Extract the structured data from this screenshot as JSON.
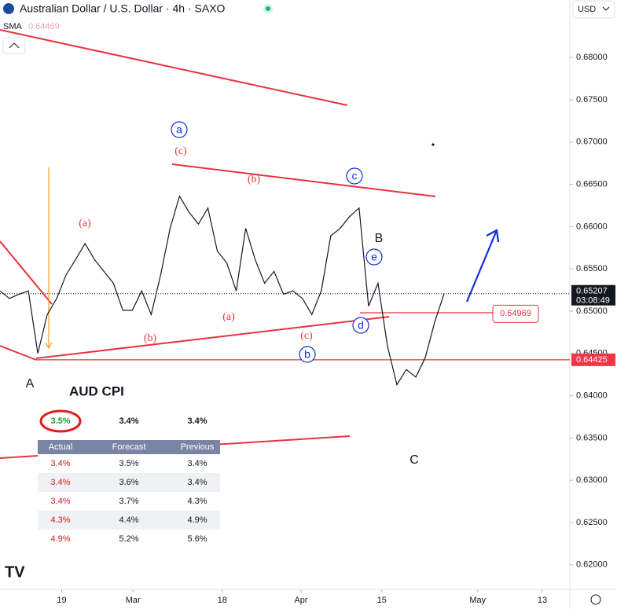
{
  "chart_data": {
    "type": "line",
    "title": "Australian Dollar / U.S. Dollar · 4h · SAXO",
    "currency": "USD",
    "sma_label": "SMA",
    "sma_value": 0.64469,
    "series": [
      {
        "name": "AUDUSD",
        "color": "#131722",
        "values": [
          0.6524,
          0.6515,
          0.652,
          0.6524,
          0.645,
          0.6496,
          0.6515,
          0.6543,
          0.6561,
          0.658,
          0.6561,
          0.6547,
          0.6533,
          0.6501,
          0.6501,
          0.6524,
          0.6496,
          0.6543,
          0.6598,
          0.6636,
          0.6617,
          0.6603,
          0.6622,
          0.6571,
          0.6557,
          0.6524,
          0.6598,
          0.6561,
          0.6533,
          0.6547,
          0.652,
          0.6524,
          0.6515,
          0.6496,
          0.6524,
          0.6589,
          0.6598,
          0.6612,
          0.6622,
          0.6506,
          0.6533,
          0.6459,
          0.6413,
          0.6431,
          0.6422,
          0.6445,
          0.6487,
          0.6521
        ]
      }
    ],
    "xlim": [
      0,
      60
    ],
    "xticks": [
      {
        "value": 6.5,
        "label": "19"
      },
      {
        "value": 14,
        "label": "Mar"
      },
      {
        "value": 23.4,
        "label": "18"
      },
      {
        "value": 31.7,
        "label": "Apr"
      },
      {
        "value": 40.2,
        "label": "15"
      },
      {
        "value": 50.3,
        "label": "May"
      },
      {
        "value": 57.1,
        "label": "13"
      }
    ],
    "ylim": [
      0.6171,
      0.6868
    ],
    "yticks": [
      {
        "value": 0.68,
        "label": "0.68000"
      },
      {
        "value": 0.675,
        "label": "0.67500"
      },
      {
        "value": 0.67,
        "label": "0.67000"
      },
      {
        "value": 0.665,
        "label": "0.66500"
      },
      {
        "value": 0.66,
        "label": "0.66000"
      },
      {
        "value": 0.655,
        "label": "0.65500"
      },
      {
        "value": 0.65,
        "label": "0.65000"
      },
      {
        "value": 0.645,
        "label": "0.64500"
      },
      {
        "value": 0.64,
        "label": "0.64000"
      },
      {
        "value": 0.635,
        "label": "0.63500"
      },
      {
        "value": 0.63,
        "label": "0.63000"
      },
      {
        "value": 0.625,
        "label": "0.62500"
      },
      {
        "value": 0.62,
        "label": "0.62000"
      }
    ],
    "last_price": 0.65207,
    "countdown": "03:08:49",
    "support_level": 0.64425,
    "marked_level": 0.64969,
    "annotations": [
      "(c)",
      "a",
      "(b)",
      "c",
      "(a)",
      "B",
      "e",
      "(a)",
      "(b)",
      "(c)",
      "d",
      "b",
      "A",
      "C"
    ]
  },
  "table": {
    "title": "AUD CPI",
    "top_row": [
      "3.5%",
      "3.4%",
      "3.4%"
    ],
    "columns": [
      "Actual",
      "Forecast",
      "Previous"
    ],
    "rows": [
      [
        "3.4%",
        "3.5%",
        "3.4%"
      ],
      [
        "3.4%",
        "3.6%",
        "3.4%"
      ],
      [
        "3.4%",
        "3.7%",
        "4.3%"
      ],
      [
        "4.3%",
        "4.4%",
        "4.9%"
      ],
      [
        "4.9%",
        "5.2%",
        "5.6%"
      ]
    ]
  }
}
